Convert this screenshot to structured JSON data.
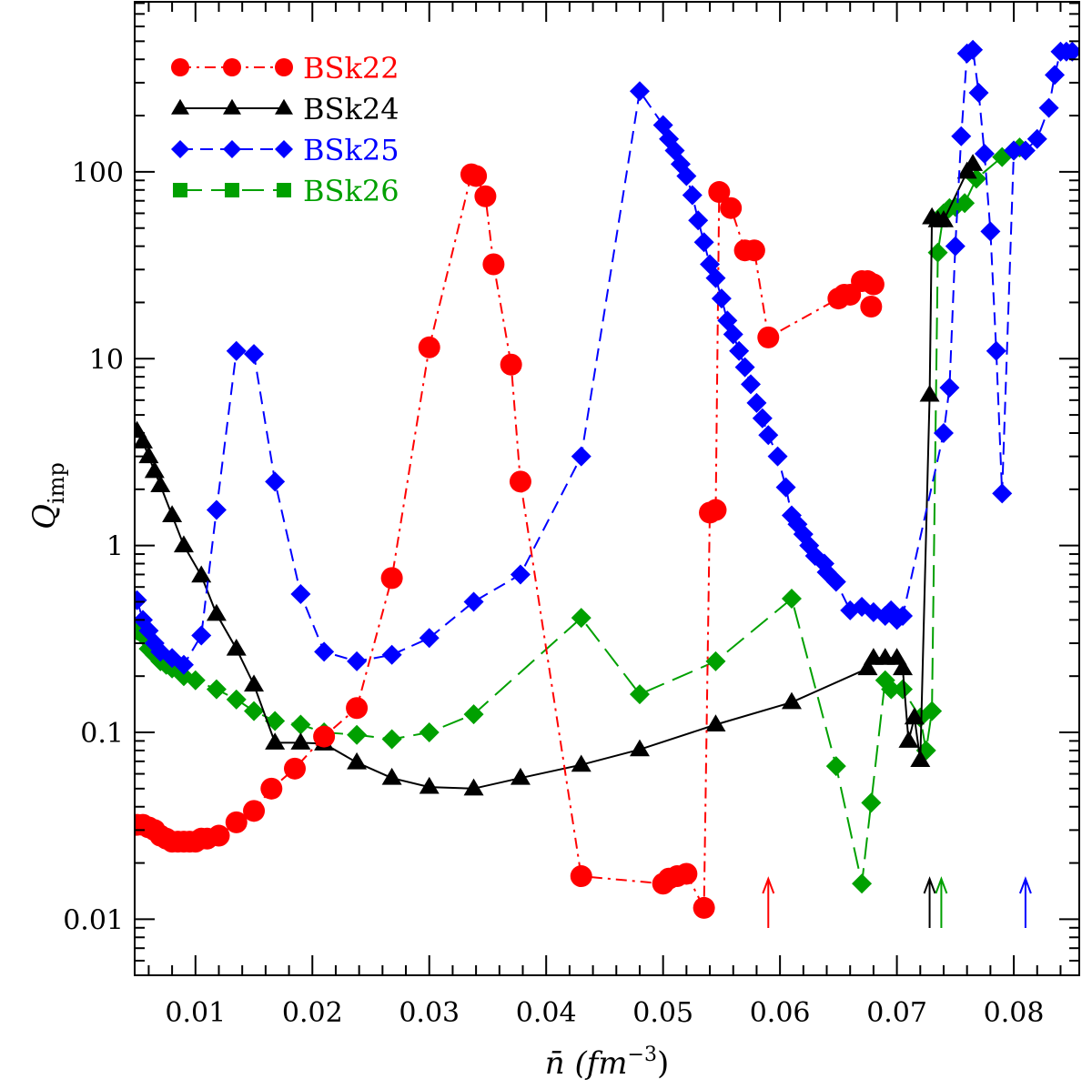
{
  "chart_data": {
    "type": "line",
    "title": "",
    "xlabel": "n̄  (fm",
    "xlabel_sup": "−3",
    "xlabel_close": ")",
    "ylabel": "Q",
    "ylabel_sub": "imp",
    "xlim": [
      0.005,
      0.085
    ],
    "ylim": [
      0.005,
      800
    ],
    "yscale": "log",
    "grid": false,
    "legend_position": "top-left",
    "xticks": [
      0.01,
      0.02,
      0.03,
      0.04,
      0.05,
      0.06,
      0.07,
      0.08
    ],
    "xtick_labels": [
      "0.01",
      "0.02",
      "0.03",
      "0.04",
      "0.05",
      "0.06",
      "0.07",
      "0.08"
    ],
    "yticks": [
      0.01,
      0.1,
      1,
      10,
      100
    ],
    "ytick_labels": [
      "0.01",
      "0.1",
      "1",
      "10",
      "100"
    ],
    "series": [
      {
        "name": "BSk22",
        "color": "#ff0000",
        "marker": "circle",
        "line": "dashdot",
        "x": [
          0.005,
          0.0055,
          0.006,
          0.0065,
          0.007,
          0.0075,
          0.008,
          0.0085,
          0.009,
          0.0095,
          0.01,
          0.0105,
          0.011,
          0.012,
          0.0135,
          0.015,
          0.0165,
          0.0185,
          0.021,
          0.0238,
          0.0268,
          0.03,
          0.0336,
          0.034,
          0.0348,
          0.0355,
          0.037,
          0.0378,
          0.043,
          0.05,
          0.0505,
          0.0512,
          0.052,
          0.0535,
          0.054,
          0.0545,
          0.0548,
          0.0558,
          0.057,
          0.0578,
          0.059,
          0.065,
          0.0655,
          0.066,
          0.067,
          0.0675,
          0.068,
          0.0678
        ],
        "y": [
          0.032,
          0.032,
          0.031,
          0.03,
          0.028,
          0.027,
          0.026,
          0.026,
          0.026,
          0.026,
          0.026,
          0.027,
          0.027,
          0.028,
          0.033,
          0.038,
          0.05,
          0.064,
          0.095,
          0.135,
          0.67,
          11.5,
          97.0,
          95.0,
          74.0,
          32.0,
          9.3,
          2.2,
          0.017,
          0.0155,
          0.0165,
          0.017,
          0.0175,
          0.0115,
          1.5,
          1.55,
          78.0,
          64.0,
          38.0,
          38.0,
          13.0,
          21.0,
          22.0,
          22.0,
          26.0,
          26.0,
          25.0,
          19.0
        ]
      },
      {
        "name": "BSk24",
        "color": "#000000",
        "marker": "triangle",
        "line": "solid",
        "x": [
          0.005,
          0.0055,
          0.006,
          0.0065,
          0.007,
          0.008,
          0.009,
          0.0105,
          0.0118,
          0.0135,
          0.015,
          0.0168,
          0.019,
          0.021,
          0.0238,
          0.0268,
          0.03,
          0.0338,
          0.0378,
          0.043,
          0.048,
          0.0545,
          0.061,
          0.0675,
          0.068,
          0.069,
          0.07,
          0.0705,
          0.071,
          0.0715,
          0.072,
          0.0728,
          0.073,
          0.0735,
          0.074,
          0.076,
          0.0765
        ],
        "y": [
          4.1,
          3.6,
          3.0,
          2.5,
          2.1,
          1.45,
          1.0,
          0.69,
          0.43,
          0.28,
          0.18,
          0.088,
          0.088,
          0.087,
          0.069,
          0.057,
          0.051,
          0.05,
          0.057,
          0.067,
          0.081,
          0.11,
          0.145,
          0.22,
          0.25,
          0.25,
          0.25,
          0.22,
          0.09,
          0.12,
          0.071,
          6.4,
          57.0,
          55.0,
          55.0,
          100.0,
          110.0
        ]
      },
      {
        "name": "BSk25",
        "color": "#0000ff",
        "marker": "diamond",
        "line": "dashed",
        "x": [
          0.005,
          0.0055,
          0.006,
          0.0065,
          0.007,
          0.008,
          0.009,
          0.0105,
          0.0118,
          0.0135,
          0.015,
          0.0168,
          0.019,
          0.021,
          0.0238,
          0.0268,
          0.03,
          0.0338,
          0.0378,
          0.043,
          0.048,
          0.05,
          0.0505,
          0.051,
          0.0515,
          0.052,
          0.0525,
          0.053,
          0.0535,
          0.054,
          0.0545,
          0.055,
          0.0555,
          0.056,
          0.0565,
          0.057,
          0.0575,
          0.058,
          0.0585,
          0.059,
          0.0598,
          0.0605,
          0.061,
          0.0615,
          0.062,
          0.0625,
          0.063,
          0.0638,
          0.064,
          0.0648,
          0.066,
          0.067,
          0.068,
          0.069,
          0.0695,
          0.07,
          0.0705,
          0.074,
          0.0745,
          0.075,
          0.0755,
          0.076,
          0.0765,
          0.077,
          0.0775,
          0.078,
          0.0785,
          0.079,
          0.08,
          0.081,
          0.082,
          0.083,
          0.0835,
          0.084,
          0.0845,
          0.085
        ],
        "y": [
          0.51,
          0.4,
          0.35,
          0.3,
          0.27,
          0.25,
          0.23,
          0.33,
          1.55,
          11.0,
          10.6,
          2.2,
          0.55,
          0.27,
          0.24,
          0.26,
          0.32,
          0.5,
          0.7,
          3.0,
          270.0,
          178.0,
          150.0,
          130.0,
          110.0,
          95.0,
          75.0,
          55.0,
          42.0,
          32.0,
          27.0,
          21.0,
          16.0,
          13.5,
          11.0,
          9.0,
          7.3,
          5.8,
          4.8,
          3.9,
          3.0,
          2.05,
          1.45,
          1.3,
          1.15,
          1.0,
          0.88,
          0.8,
          0.72,
          0.64,
          0.45,
          0.47,
          0.44,
          0.42,
          0.45,
          0.4,
          0.42,
          4.0,
          7.0,
          40.0,
          155.0,
          430.0,
          450.0,
          265.0,
          125.0,
          48.0,
          11.0,
          1.9,
          130.0,
          130.0,
          150.0,
          220.0,
          330.0,
          440.0,
          440.0,
          440.0
        ]
      },
      {
        "name": "BSk26",
        "color": "#00a000",
        "marker": "square",
        "line": "longdash",
        "marker_plot": "diamond",
        "x": [
          0.005,
          0.0055,
          0.006,
          0.0065,
          0.007,
          0.0075,
          0.008,
          0.009,
          0.01,
          0.0118,
          0.0135,
          0.015,
          0.0168,
          0.019,
          0.021,
          0.0238,
          0.0268,
          0.03,
          0.0338,
          0.043,
          0.048,
          0.0545,
          0.061,
          0.0648,
          0.067,
          0.0678,
          0.069,
          0.0695,
          0.0705,
          0.072,
          0.0725,
          0.073,
          0.0735,
          0.074,
          0.0745,
          0.075,
          0.0758,
          0.0768,
          0.079,
          0.08,
          0.0805
        ],
        "y": [
          0.35,
          0.33,
          0.28,
          0.26,
          0.24,
          0.23,
          0.22,
          0.2,
          0.19,
          0.17,
          0.15,
          0.13,
          0.115,
          0.11,
          0.1,
          0.097,
          0.092,
          0.1,
          0.125,
          0.41,
          0.16,
          0.24,
          0.52,
          0.066,
          0.0155,
          0.042,
          0.19,
          0.17,
          0.17,
          0.12,
          0.08,
          0.13,
          37.0,
          60.0,
          64.0,
          65.0,
          68.0,
          92.0,
          120.0,
          130.0,
          135.0
        ]
      }
    ],
    "arrows": [
      {
        "x": 0.059,
        "color": "#ff0000"
      },
      {
        "x": 0.0728,
        "color": "#000000"
      },
      {
        "x": 0.0738,
        "color": "#00a000"
      },
      {
        "x": 0.081,
        "color": "#0000ff"
      }
    ]
  }
}
